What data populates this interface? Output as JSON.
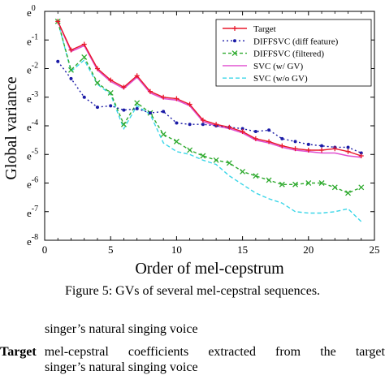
{
  "chart_data": {
    "type": "line",
    "xlabel": "Order of mel-cepstrum",
    "ylabel": "Global variance",
    "xlim": [
      0,
      25
    ],
    "ylim": [
      -8,
      0
    ],
    "x_ticks": [
      0,
      5,
      10,
      15,
      20,
      25
    ],
    "y_tick_labels": [
      {
        "value": 0,
        "label": "e",
        "exp": "0"
      },
      {
        "value": -1,
        "label": "e",
        "exp": "-1"
      },
      {
        "value": -2,
        "label": "e",
        "exp": "-2"
      },
      {
        "value": -3,
        "label": "e",
        "exp": "-3"
      },
      {
        "value": -4,
        "label": "e",
        "exp": "-4"
      },
      {
        "value": -5,
        "label": "e",
        "exp": "-5"
      },
      {
        "value": -6,
        "label": "e",
        "exp": "-6"
      },
      {
        "value": -7,
        "label": "e",
        "exp": "-7"
      },
      {
        "value": -8,
        "label": "e",
        "exp": "-8"
      }
    ],
    "legend_position": "top-right",
    "x": [
      1,
      2,
      3,
      4,
      5,
      6,
      7,
      8,
      9,
      10,
      11,
      12,
      13,
      14,
      15,
      16,
      17,
      18,
      19,
      20,
      21,
      22,
      23,
      24
    ],
    "series": [
      {
        "name": "Target",
        "color": "#e8182c",
        "dash": "",
        "marker": "plus",
        "values": [
          -0.35,
          -1.35,
          -1.15,
          -2.0,
          -2.4,
          -2.65,
          -2.25,
          -2.8,
          -3.0,
          -3.05,
          -3.25,
          -3.8,
          -3.95,
          -4.05,
          -4.2,
          -4.45,
          -4.55,
          -4.7,
          -4.8,
          -4.85,
          -4.85,
          -4.8,
          -4.9,
          -5.05
        ]
      },
      {
        "name": "DIFFSVC (diff feature)",
        "color": "#1a1aa6",
        "dash": "2,3",
        "marker": "dot",
        "values": [
          -1.75,
          -2.35,
          -3.0,
          -3.35,
          -3.3,
          -3.45,
          -3.4,
          -3.55,
          -3.5,
          -3.9,
          -3.95,
          -3.95,
          -4.0,
          -4.05,
          -4.1,
          -4.2,
          -4.15,
          -4.45,
          -4.55,
          -4.65,
          -4.7,
          -4.75,
          -4.75,
          -4.95
        ]
      },
      {
        "name": "DIFFSVC (filtered)",
        "color": "#2eaa2e",
        "dash": "4,3",
        "marker": "x",
        "values": [
          -0.35,
          -2.05,
          -1.6,
          -2.5,
          -2.85,
          -3.95,
          -3.2,
          -3.55,
          -4.3,
          -4.55,
          -4.85,
          -5.05,
          -5.2,
          -5.3,
          -5.6,
          -5.75,
          -5.9,
          -6.05,
          -6.05,
          -6.0,
          -6.0,
          -6.15,
          -6.35,
          -6.15
        ]
      },
      {
        "name": "SVC (w/ GV)",
        "color": "#e04fd0",
        "dash": "",
        "marker": "none",
        "values": [
          -0.35,
          -1.4,
          -1.2,
          -2.05,
          -2.45,
          -2.7,
          -2.3,
          -2.85,
          -3.05,
          -3.1,
          -3.3,
          -3.85,
          -4.0,
          -4.1,
          -4.25,
          -4.5,
          -4.6,
          -4.75,
          -4.85,
          -4.9,
          -4.95,
          -4.95,
          -5.05,
          -5.1
        ]
      },
      {
        "name": "SVC (w/o GV)",
        "color": "#3ad6e8",
        "dash": "5,3",
        "marker": "none",
        "values": [
          -0.35,
          -2.1,
          -1.7,
          -2.55,
          -2.9,
          -4.1,
          -3.3,
          -3.6,
          -4.6,
          -4.9,
          -5.0,
          -5.2,
          -5.35,
          -5.75,
          -6.05,
          -6.35,
          -6.55,
          -6.7,
          -7.0,
          -7.05,
          -7.05,
          -7.0,
          -6.9,
          -7.35
        ]
      }
    ]
  },
  "caption": "Figure 5: GVs of several mel-cepstral sequences.",
  "body_text": {
    "line1": "singer’s natural singing voice",
    "def_term": "Target",
    "def_words": [
      "mel-cepstral",
      "coefficients",
      "extracted",
      "from",
      "the",
      "target"
    ],
    "def_cut": "singer’s natural singing voice"
  }
}
